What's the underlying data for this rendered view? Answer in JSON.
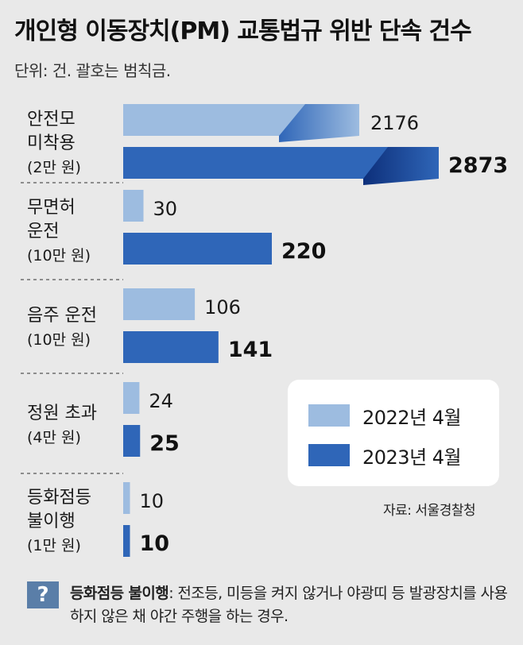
{
  "title": "개인형 이동장치(PM) 교통법규 위반 단속 건수",
  "unit_note": "단위: 건. 괄호는 범칙금.",
  "source": "자료: 서울경찰청",
  "note": {
    "icon": "?",
    "head": "등화점등 불이행",
    "text": ": 전조등, 미등을 켜지 않거나 야광띠 등 발광장치를 사용하지 않은 채 야간 주행을 하는 경우."
  },
  "legend": [
    {
      "label": "2022년 4월",
      "color": "#9dbce0"
    },
    {
      "label": "2023년 4월",
      "color": "#2f66b8"
    }
  ],
  "chart_data": {
    "type": "bar",
    "orientation": "horizontal",
    "categories": [
      {
        "lines": [
          "안전모",
          "미착용"
        ],
        "fine": "(2만 원)"
      },
      {
        "lines": [
          "무면허",
          "운전"
        ],
        "fine": "(10만 원)"
      },
      {
        "lines": [
          "음주 운전"
        ],
        "fine": "(10만 원)"
      },
      {
        "lines": [
          "정원 초과"
        ],
        "fine": "(4만 원)"
      },
      {
        "lines": [
          "등화점등",
          "불이행"
        ],
        "fine": "(1만 원)"
      }
    ],
    "series": [
      {
        "name": "2022년 4월",
        "values": [
          2176,
          30,
          106,
          24,
          10
        ],
        "color": "#9dbce0"
      },
      {
        "name": "2023년 4월",
        "values": [
          2873,
          220,
          141,
          25,
          10
        ],
        "color": "#2f66b8"
      }
    ],
    "axis_break": true,
    "grid": false,
    "legend_position": "right"
  }
}
